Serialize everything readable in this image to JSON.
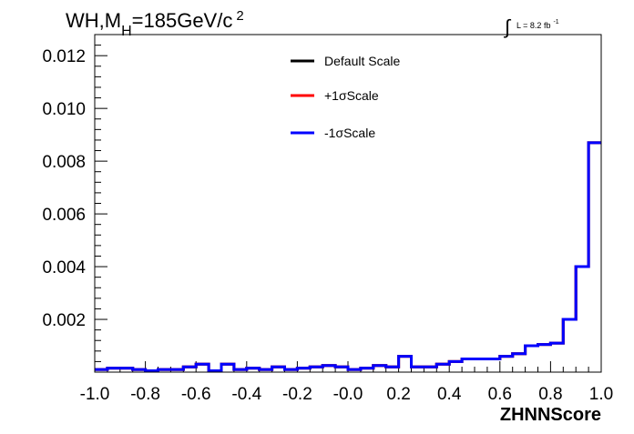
{
  "chart_data": {
    "type": "histogram",
    "title_parts": {
      "base": "WH,M",
      "sub": "H",
      "rest": "=185GeV/c",
      "sup": "2"
    },
    "lumi": {
      "symbol": "∫",
      "text": "L = 8.2 fb",
      "sup": "-1"
    },
    "xlabel": "ZHNNScore",
    "ylabel": "",
    "xlim": [
      -1.0,
      1.0
    ],
    "ylim": [
      0,
      0.0128
    ],
    "x_tick_labels": [
      "-1.0",
      "-0.8",
      "-0.6",
      "-0.4",
      "-0.2",
      "-0.0",
      "0.2",
      "0.4",
      "0.6",
      "0.8",
      "1.0"
    ],
    "y_tick_labels": [
      "0.002",
      "0.004",
      "0.006",
      "0.008",
      "0.010",
      "0.012"
    ],
    "grid": false,
    "legend_position": "top-center",
    "bin_edges": [
      -1.0,
      -0.95,
      -0.9,
      -0.85,
      -0.8,
      -0.75,
      -0.7,
      -0.65,
      -0.6,
      -0.55,
      -0.5,
      -0.45,
      -0.4,
      -0.35,
      -0.3,
      -0.25,
      -0.2,
      -0.15,
      -0.1,
      -0.05,
      0.0,
      0.05,
      0.1,
      0.15,
      0.2,
      0.25,
      0.3,
      0.35,
      0.4,
      0.45,
      0.5,
      0.55,
      0.6,
      0.65,
      0.7,
      0.75,
      0.8,
      0.85,
      0.9,
      0.95,
      1.0
    ],
    "series": [
      {
        "name": "Default Scale",
        "color": "#000000",
        "values": [
          0.0001,
          0.00015,
          0.00015,
          0.0001,
          5e-05,
          0.0001,
          0.0001,
          0.0002,
          0.0003,
          5e-05,
          0.0003,
          0.0001,
          0.00015,
          0.0001,
          0.0002,
          0.0001,
          0.00015,
          0.0002,
          0.00025,
          0.0002,
          0.0001,
          0.00015,
          0.00025,
          0.0002,
          0.0006,
          0.0002,
          0.0002,
          0.0003,
          0.0004,
          0.0005,
          0.0005,
          0.0005,
          0.0006,
          0.0007,
          0.001,
          0.00105,
          0.0011,
          0.002,
          0.004,
          0.0087
        ]
      },
      {
        "name": "+1σScale",
        "color": "#ff0000",
        "values": [
          0.0001,
          0.00015,
          0.00015,
          0.0001,
          5e-05,
          0.0001,
          0.0001,
          0.0002,
          0.0003,
          5e-05,
          0.0003,
          0.0001,
          0.00015,
          0.0001,
          0.0002,
          0.0001,
          0.00015,
          0.0002,
          0.00025,
          0.0002,
          0.0001,
          0.00015,
          0.00025,
          0.0002,
          0.0006,
          0.0002,
          0.0002,
          0.0003,
          0.0004,
          0.0005,
          0.0005,
          0.0005,
          0.0006,
          0.0007,
          0.001,
          0.00105,
          0.0011,
          0.002,
          0.004,
          0.0087
        ]
      },
      {
        "name": "-1σScale",
        "color": "#0000ff",
        "values": [
          0.0001,
          0.00015,
          0.00015,
          0.0001,
          5e-05,
          0.0001,
          0.0001,
          0.0002,
          0.0003,
          5e-05,
          0.0003,
          0.0001,
          0.00015,
          0.0001,
          0.0002,
          0.0001,
          0.00015,
          0.0002,
          0.00025,
          0.0002,
          0.0001,
          0.00015,
          0.00025,
          0.0002,
          0.0006,
          0.0002,
          0.0002,
          0.0003,
          0.0004,
          0.0005,
          0.0005,
          0.0005,
          0.0006,
          0.0007,
          0.001,
          0.00105,
          0.0011,
          0.002,
          0.004,
          0.0087
        ]
      }
    ]
  }
}
